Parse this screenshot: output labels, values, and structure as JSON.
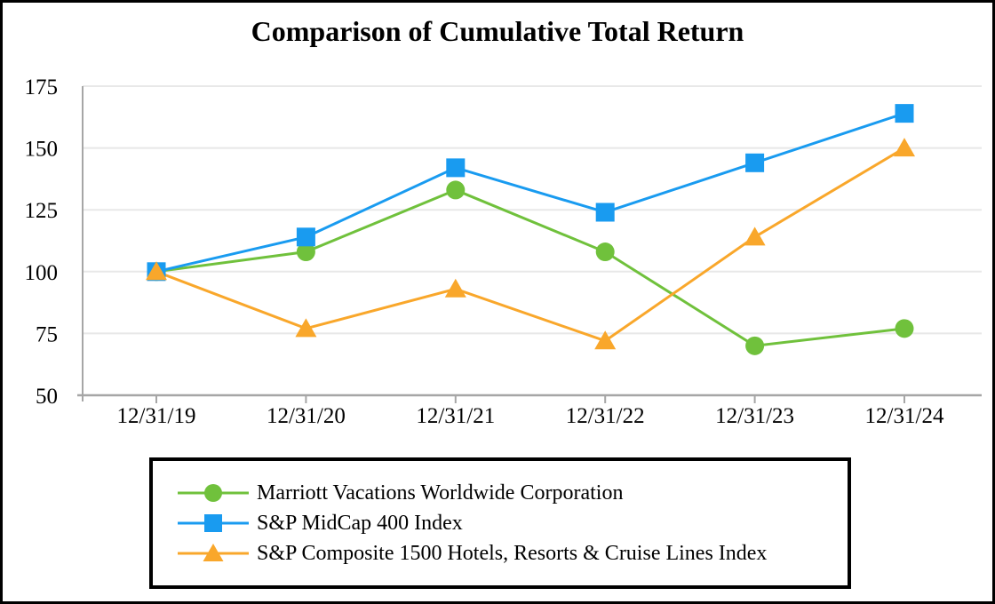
{
  "chart_data": {
    "type": "line",
    "title": "Comparison of Cumulative Total Return",
    "xlabel": "",
    "ylabel": "",
    "categories": [
      "12/31/19",
      "12/31/20",
      "12/31/21",
      "12/31/22",
      "12/31/23",
      "12/31/24"
    ],
    "series": [
      {
        "name": "Marriott Vacations Worldwide Corporation",
        "marker": "circle",
        "color": "#70C13C",
        "values": [
          100,
          108,
          133,
          108,
          70,
          77
        ]
      },
      {
        "name": "S&P MidCap 400 Index",
        "marker": "square",
        "color": "#199BF0",
        "values": [
          100,
          114,
          142,
          124,
          144,
          164
        ]
      },
      {
        "name": "S&P Composite 1500 Hotels, Resorts & Cruise Lines Index",
        "marker": "triangle",
        "color": "#F9A72B",
        "values": [
          100,
          77,
          93,
          72,
          114,
          150
        ]
      }
    ],
    "ylim": [
      50,
      175
    ],
    "yticks": [
      50,
      75,
      100,
      125,
      150,
      175
    ],
    "grid": true,
    "legend_position": "bottom"
  }
}
